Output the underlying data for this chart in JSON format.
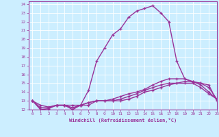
{
  "xlabel": "Windchill (Refroidissement éolien,°C)",
  "bg_color": "#cceeff",
  "line_color": "#993399",
  "xlim": [
    -0.5,
    23
  ],
  "ylim": [
    12,
    24.3
  ],
  "yticks": [
    12,
    13,
    14,
    15,
    16,
    17,
    18,
    19,
    20,
    21,
    22,
    23,
    24
  ],
  "xticks": [
    0,
    1,
    2,
    3,
    4,
    5,
    6,
    7,
    8,
    9,
    10,
    11,
    12,
    13,
    14,
    15,
    16,
    17,
    18,
    19,
    20,
    21,
    22,
    23
  ],
  "line1_x": [
    0,
    1,
    2,
    3,
    4,
    5,
    6,
    7,
    8,
    9,
    10,
    11,
    12,
    13,
    14,
    15,
    16,
    17,
    18,
    19,
    20,
    21,
    22,
    23
  ],
  "line1_y": [
    13.0,
    12.0,
    12.1,
    12.5,
    12.5,
    12.0,
    12.5,
    14.2,
    17.5,
    19.0,
    20.5,
    21.2,
    22.5,
    23.2,
    23.5,
    23.8,
    23.0,
    22.0,
    17.5,
    15.5,
    15.1,
    15.0,
    14.8,
    13.0
  ],
  "line2_x": [
    0,
    1,
    2,
    3,
    4,
    5,
    6,
    7,
    8,
    9,
    10,
    11,
    12,
    13,
    14,
    15,
    16,
    17,
    18,
    19,
    20,
    21,
    22,
    23
  ],
  "line2_y": [
    13.0,
    12.5,
    12.3,
    12.5,
    12.5,
    12.5,
    12.5,
    12.8,
    13.0,
    13.0,
    13.2,
    13.5,
    13.8,
    14.0,
    14.3,
    14.8,
    15.2,
    15.5,
    15.5,
    15.5,
    15.2,
    15.0,
    14.5,
    13.2
  ],
  "line3_x": [
    0,
    1,
    2,
    3,
    4,
    5,
    6,
    7,
    8,
    9,
    10,
    11,
    12,
    13,
    14,
    15,
    16,
    17,
    18,
    19,
    20,
    21,
    22,
    23
  ],
  "line3_y": [
    13.0,
    12.2,
    12.2,
    12.5,
    12.5,
    12.2,
    12.5,
    12.8,
    13.0,
    13.0,
    13.0,
    13.2,
    13.5,
    13.8,
    14.2,
    14.5,
    14.8,
    15.0,
    15.0,
    15.2,
    15.2,
    14.8,
    14.0,
    13.2
  ],
  "line4_x": [
    0,
    1,
    2,
    3,
    4,
    5,
    6,
    7,
    8,
    9,
    10,
    11,
    12,
    13,
    14,
    15,
    16,
    17,
    18,
    19,
    20,
    21,
    22,
    23
  ],
  "line4_y": [
    13.0,
    12.2,
    12.2,
    12.5,
    12.5,
    12.2,
    12.5,
    12.5,
    13.0,
    13.0,
    13.0,
    13.0,
    13.2,
    13.5,
    14.0,
    14.2,
    14.5,
    14.8,
    15.0,
    15.0,
    15.0,
    14.5,
    13.8,
    13.2
  ]
}
